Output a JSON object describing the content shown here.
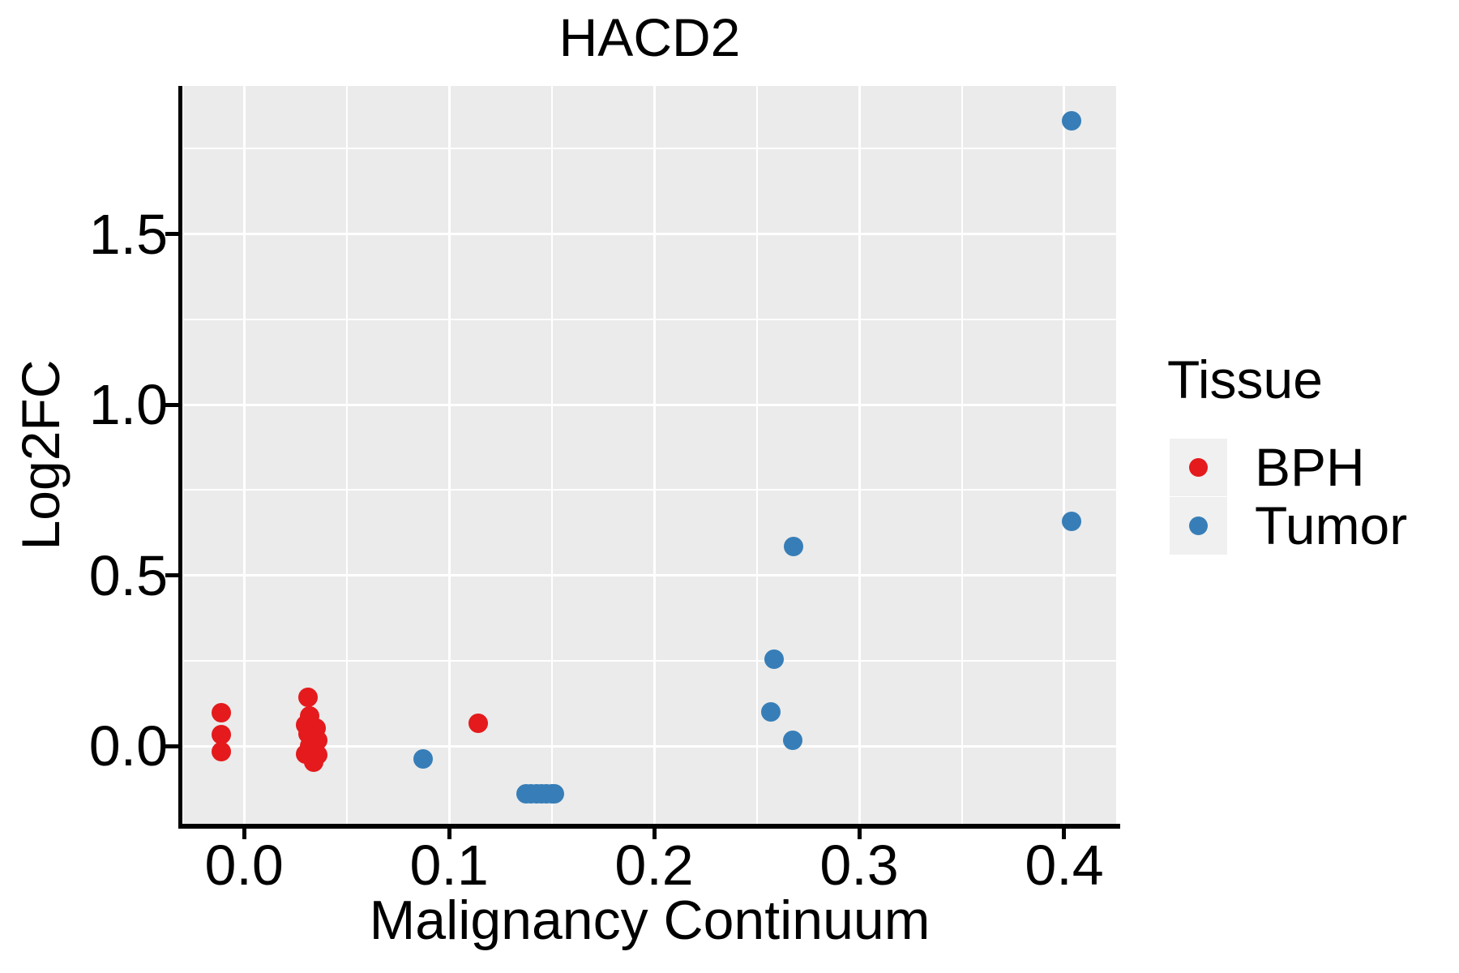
{
  "chart_data": {
    "type": "scatter",
    "title": "HACD2",
    "xlabel": "Malignancy Continuum",
    "ylabel": "Log2FC",
    "xlim": [
      -0.0297,
      0.4253
    ],
    "ylim": [
      -0.228,
      1.934
    ],
    "x_major_ticks": [
      0.0,
      0.1,
      0.2,
      0.3,
      0.4
    ],
    "x_minor_ticks": [
      0.05,
      0.15,
      0.25,
      0.35
    ],
    "y_major_ticks": [
      0.0,
      0.5,
      1.0,
      1.5
    ],
    "y_minor_ticks": [
      0.25,
      0.75,
      1.25,
      1.75
    ],
    "x_tick_labels": [
      "0.0",
      "0.1",
      "0.2",
      "0.3",
      "0.4"
    ],
    "y_tick_labels": [
      "0.0",
      "0.5",
      "1.0",
      "1.5"
    ],
    "grid": "on",
    "panel_background": "#EBEBEB",
    "gridline_color": "#FFFFFF",
    "legend_title": "Tissue",
    "legend_position": "right",
    "series": [
      {
        "name": "BPH",
        "color": "#E41A1C",
        "points": [
          [
            -0.011,
            0.097
          ],
          [
            -0.011,
            0.033
          ],
          [
            -0.011,
            -0.017
          ],
          [
            0.031,
            0.143
          ],
          [
            0.032,
            0.088
          ],
          [
            0.03,
            0.062
          ],
          [
            0.035,
            0.052
          ],
          [
            0.031,
            0.036
          ],
          [
            0.036,
            0.017
          ],
          [
            0.032,
            0.0
          ],
          [
            0.03,
            -0.024
          ],
          [
            0.036,
            -0.025
          ],
          [
            0.034,
            -0.048
          ],
          [
            0.114,
            0.066
          ]
        ]
      },
      {
        "name": "Tumor",
        "color": "#377EB8",
        "points": [
          [
            0.0875,
            -0.038
          ],
          [
            0.1375,
            -0.14
          ],
          [
            0.14,
            -0.141
          ],
          [
            0.1425,
            -0.139
          ],
          [
            0.145,
            -0.141
          ],
          [
            0.1475,
            -0.14
          ],
          [
            0.15,
            -0.139
          ],
          [
            0.1515,
            -0.141
          ],
          [
            0.268,
            0.584
          ],
          [
            0.2585,
            0.254
          ],
          [
            0.257,
            0.1
          ],
          [
            0.2676,
            0.017
          ],
          [
            0.4036,
            1.831
          ],
          [
            0.4036,
            0.658
          ]
        ]
      }
    ]
  }
}
